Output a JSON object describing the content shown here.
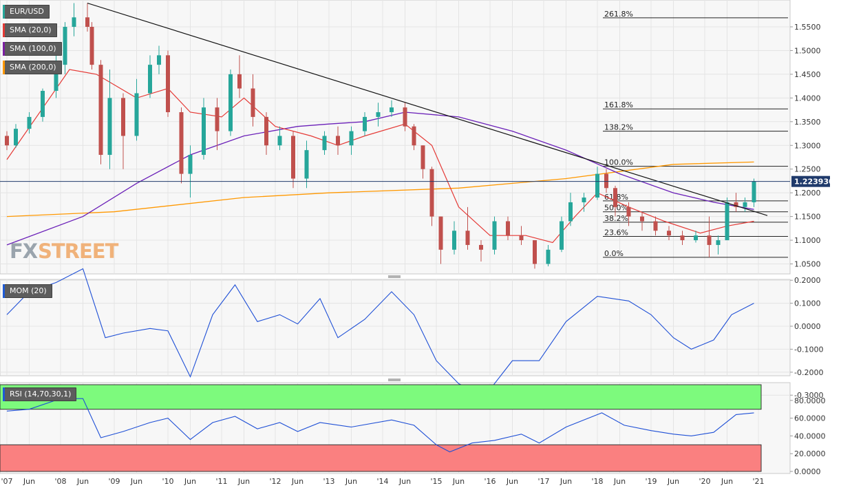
{
  "chart_data": {
    "type": "candlestick",
    "symbol": "EUR/USD",
    "last_price": "1.223930",
    "time_axis": {
      "labels": [
        "'07",
        "Jun",
        "'08",
        "Jun",
        "'09",
        "Jun",
        "'10",
        "Jun",
        "'11",
        "Jun",
        "'12",
        "Jun",
        "'13",
        "Jun",
        "'14",
        "Jun",
        "'15",
        "Jun",
        "'16",
        "Jun",
        "'17",
        "Jun",
        "'18",
        "Jun",
        "'19",
        "Jun",
        "'20",
        "Jun",
        "'21"
      ]
    },
    "price_axis": {
      "ylim": [
        1.03,
        1.6
      ],
      "ticks": [
        "1.5500",
        "1.5000",
        "1.4500",
        "1.4000",
        "1.3500",
        "1.3000",
        "1.2500",
        "1.2000",
        "1.1500",
        "1.1000",
        "1.0500"
      ]
    },
    "legend": [
      {
        "label": "EUR/USD",
        "color": "#26a69a"
      },
      {
        "label": "SMA (20,0)",
        "color": "#e53935"
      },
      {
        "label": "SMA (100,0)",
        "color": "#7b1fa2"
      },
      {
        "label": "SMA (200,0)",
        "color": "#ff9800"
      }
    ],
    "fibonacci": [
      {
        "label": "261.8%",
        "value": 1.569
      },
      {
        "label": "161.8%",
        "value": 1.377
      },
      {
        "label": "138.2%",
        "value": 1.33
      },
      {
        "label": "100.0%",
        "value": 1.256
      },
      {
        "label": "61.8%",
        "value": 1.183
      },
      {
        "label": "50.0%",
        "value": 1.16
      },
      {
        "label": "38.2%",
        "value": 1.138
      },
      {
        "label": "23.6%",
        "value": 1.108
      },
      {
        "label": "0.0%",
        "value": 1.064
      }
    ],
    "candles": {
      "colors": {
        "up": "#26a69a",
        "down": "#c0504d"
      },
      "ohlc": [
        [
          "2007-01",
          1.32,
          1.33,
          1.29,
          1.3
        ],
        [
          "2007-03",
          1.3,
          1.345,
          1.295,
          1.335
        ],
        [
          "2007-06",
          1.335,
          1.37,
          1.325,
          1.36
        ],
        [
          "2007-09",
          1.36,
          1.42,
          1.35,
          1.415
        ],
        [
          "2007-12",
          1.415,
          1.49,
          1.4,
          1.47
        ],
        [
          "2008-02",
          1.47,
          1.56,
          1.45,
          1.55
        ],
        [
          "2008-04",
          1.55,
          1.6,
          1.53,
          1.57
        ],
        [
          "2008-07",
          1.57,
          1.6,
          1.54,
          1.55
        ],
        [
          "2008-08",
          1.55,
          1.56,
          1.46,
          1.47
        ],
        [
          "2008-10",
          1.47,
          1.48,
          1.26,
          1.28
        ],
        [
          "2008-12",
          1.28,
          1.46,
          1.25,
          1.4
        ],
        [
          "2009-03",
          1.4,
          1.41,
          1.25,
          1.32
        ],
        [
          "2009-06",
          1.32,
          1.44,
          1.31,
          1.41
        ],
        [
          "2009-09",
          1.41,
          1.49,
          1.4,
          1.47
        ],
        [
          "2009-11",
          1.47,
          1.51,
          1.45,
          1.49
        ],
        [
          "2010-01",
          1.49,
          1.5,
          1.36,
          1.37
        ],
        [
          "2010-04",
          1.37,
          1.38,
          1.22,
          1.24
        ],
        [
          "2010-06",
          1.24,
          1.3,
          1.19,
          1.28
        ],
        [
          "2010-09",
          1.28,
          1.4,
          1.27,
          1.38
        ],
        [
          "2010-12",
          1.38,
          1.4,
          1.29,
          1.33
        ],
        [
          "2011-03",
          1.33,
          1.46,
          1.32,
          1.45
        ],
        [
          "2011-05",
          1.45,
          1.49,
          1.4,
          1.42
        ],
        [
          "2011-08",
          1.42,
          1.45,
          1.34,
          1.36
        ],
        [
          "2011-11",
          1.36,
          1.37,
          1.28,
          1.3
        ],
        [
          "2012-02",
          1.3,
          1.34,
          1.29,
          1.32
        ],
        [
          "2012-05",
          1.32,
          1.33,
          1.21,
          1.23
        ],
        [
          "2012-08",
          1.23,
          1.31,
          1.21,
          1.29
        ],
        [
          "2012-12",
          1.29,
          1.33,
          1.28,
          1.32
        ],
        [
          "2013-03",
          1.32,
          1.34,
          1.28,
          1.3
        ],
        [
          "2013-06",
          1.3,
          1.34,
          1.28,
          1.33
        ],
        [
          "2013-09",
          1.33,
          1.37,
          1.32,
          1.36
        ],
        [
          "2013-12",
          1.36,
          1.39,
          1.34,
          1.37
        ],
        [
          "2014-03",
          1.37,
          1.395,
          1.36,
          1.38
        ],
        [
          "2014-06",
          1.38,
          1.39,
          1.33,
          1.34
        ],
        [
          "2014-08",
          1.34,
          1.345,
          1.29,
          1.3
        ],
        [
          "2014-10",
          1.3,
          1.3,
          1.23,
          1.25
        ],
        [
          "2014-12",
          1.25,
          1.255,
          1.13,
          1.15
        ],
        [
          "2015-02",
          1.15,
          1.15,
          1.05,
          1.08
        ],
        [
          "2015-05",
          1.08,
          1.14,
          1.07,
          1.12
        ],
        [
          "2015-08",
          1.12,
          1.17,
          1.08,
          1.09
        ],
        [
          "2015-11",
          1.09,
          1.1,
          1.055,
          1.08
        ],
        [
          "2016-02",
          1.08,
          1.15,
          1.07,
          1.14
        ],
        [
          "2016-05",
          1.14,
          1.15,
          1.1,
          1.11
        ],
        [
          "2016-08",
          1.11,
          1.13,
          1.09,
          1.1
        ],
        [
          "2016-11",
          1.1,
          1.1,
          1.04,
          1.05
        ],
        [
          "2017-02",
          1.05,
          1.09,
          1.045,
          1.08
        ],
        [
          "2017-05",
          1.08,
          1.15,
          1.075,
          1.14
        ],
        [
          "2017-07",
          1.14,
          1.2,
          1.13,
          1.18
        ],
        [
          "2017-10",
          1.18,
          1.2,
          1.16,
          1.19
        ],
        [
          "2018-01",
          1.19,
          1.255,
          1.185,
          1.24
        ],
        [
          "2018-03",
          1.24,
          1.25,
          1.2,
          1.21
        ],
        [
          "2018-05",
          1.21,
          1.215,
          1.15,
          1.17
        ],
        [
          "2018-08",
          1.17,
          1.18,
          1.13,
          1.15
        ],
        [
          "2018-11",
          1.15,
          1.16,
          1.12,
          1.14
        ],
        [
          "2019-02",
          1.14,
          1.15,
          1.11,
          1.12
        ],
        [
          "2019-05",
          1.12,
          1.13,
          1.1,
          1.11
        ],
        [
          "2019-08",
          1.11,
          1.12,
          1.09,
          1.1
        ],
        [
          "2019-11",
          1.1,
          1.12,
          1.095,
          1.11
        ],
        [
          "2020-02",
          1.11,
          1.15,
          1.064,
          1.09
        ],
        [
          "2020-04",
          1.09,
          1.11,
          1.07,
          1.1
        ],
        [
          "2020-06",
          1.1,
          1.19,
          1.1,
          1.18
        ],
        [
          "2020-08",
          1.18,
          1.2,
          1.16,
          1.17
        ],
        [
          "2020-10",
          1.17,
          1.19,
          1.16,
          1.18
        ],
        [
          "2020-12",
          1.18,
          1.23,
          1.17,
          1.224
        ]
      ]
    },
    "sma20": [
      [
        "2007-01",
        1.27
      ],
      [
        "2008-03",
        1.46
      ],
      [
        "2008-09",
        1.45
      ],
      [
        "2009-06",
        1.4
      ],
      [
        "2010-01",
        1.42
      ],
      [
        "2010-06",
        1.37
      ],
      [
        "2011-01",
        1.36
      ],
      [
        "2011-06",
        1.4
      ],
      [
        "2012-01",
        1.34
      ],
      [
        "2012-09",
        1.32
      ],
      [
        "2013-03",
        1.3
      ],
      [
        "2013-09",
        1.32
      ],
      [
        "2014-06",
        1.345
      ],
      [
        "2014-12",
        1.3
      ],
      [
        "2015-06",
        1.17
      ],
      [
        "2016-01",
        1.11
      ],
      [
        "2016-09",
        1.11
      ],
      [
        "2017-03",
        1.095
      ],
      [
        "2017-08",
        1.15
      ],
      [
        "2018-01",
        1.2
      ],
      [
        "2018-08",
        1.17
      ],
      [
        "2019-04",
        1.14
      ],
      [
        "2019-12",
        1.115
      ],
      [
        "2020-06",
        1.13
      ],
      [
        "2020-12",
        1.14
      ]
    ],
    "sma100": [
      [
        "2007-01",
        1.09
      ],
      [
        "2008-06",
        1.15
      ],
      [
        "2009-06",
        1.22
      ],
      [
        "2010-06",
        1.28
      ],
      [
        "2011-06",
        1.32
      ],
      [
        "2012-06",
        1.34
      ],
      [
        "2013-01",
        1.345
      ],
      [
        "2013-09",
        1.35
      ],
      [
        "2014-06",
        1.37
      ],
      [
        "2015-06",
        1.36
      ],
      [
        "2016-06",
        1.33
      ],
      [
        "2017-06",
        1.29
      ],
      [
        "2018-06",
        1.24
      ],
      [
        "2019-06",
        1.2
      ],
      [
        "2020-03",
        1.18
      ],
      [
        "2020-12",
        1.165
      ]
    ],
    "sma200": [
      [
        "2007-01",
        1.15
      ],
      [
        "2009-01",
        1.16
      ],
      [
        "2011-06",
        1.19
      ],
      [
        "2013-01",
        1.2
      ],
      [
        "2015-06",
        1.21
      ],
      [
        "2017-06",
        1.23
      ],
      [
        "2019-06",
        1.26
      ],
      [
        "2020-12",
        1.265
      ]
    ],
    "trendline": [
      [
        "2008-07",
        1.6
      ],
      [
        "2021-03",
        1.152
      ]
    ],
    "momentum": {
      "label": "MOM (20)",
      "ticks": [
        "0.2000",
        "0.1000",
        "0.0000",
        "-0.1000",
        "-0.2000",
        "-0.3000"
      ],
      "ylim": [
        -0.32,
        0.25
      ],
      "values": [
        [
          "2007-01",
          0.05
        ],
        [
          "2007-06",
          0.15
        ],
        [
          "2007-12",
          0.19
        ],
        [
          "2008-06",
          0.25
        ],
        [
          "2008-11",
          -0.05
        ],
        [
          "2009-03",
          -0.03
        ],
        [
          "2009-09",
          -0.01
        ],
        [
          "2010-01",
          -0.02
        ],
        [
          "2010-06",
          -0.22
        ],
        [
          "2010-11",
          0.05
        ],
        [
          "2011-04",
          0.18
        ],
        [
          "2011-09",
          0.02
        ],
        [
          "2012-02",
          0.05
        ],
        [
          "2012-06",
          0.01
        ],
        [
          "2012-11",
          0.12
        ],
        [
          "2013-03",
          -0.05
        ],
        [
          "2013-09",
          0.03
        ],
        [
          "2014-03",
          0.15
        ],
        [
          "2014-08",
          0.05
        ],
        [
          "2015-01",
          -0.15
        ],
        [
          "2015-06",
          -0.25
        ],
        [
          "2015-12",
          -0.3
        ],
        [
          "2016-06",
          -0.15
        ],
        [
          "2016-12",
          -0.15
        ],
        [
          "2017-06",
          0.02
        ],
        [
          "2018-01",
          0.13
        ],
        [
          "2018-08",
          0.11
        ],
        [
          "2019-01",
          0.05
        ],
        [
          "2019-06",
          -0.05
        ],
        [
          "2019-10",
          -0.1
        ],
        [
          "2020-03",
          -0.06
        ],
        [
          "2020-07",
          0.05
        ],
        [
          "2020-12",
          0.1
        ]
      ]
    },
    "rsi": {
      "label": "RSI (14,70,30,1)",
      "ticks": [
        "80.0000",
        "60.0000",
        "40.0000",
        "20.0000",
        "0.0000"
      ],
      "ylim": [
        0,
        100
      ],
      "overbought": 70,
      "oversold": 30,
      "values": [
        [
          "2007-01",
          68
        ],
        [
          "2007-06",
          70
        ],
        [
          "2008-01",
          82
        ],
        [
          "2008-06",
          82
        ],
        [
          "2008-10",
          38
        ],
        [
          "2009-03",
          45
        ],
        [
          "2009-09",
          55
        ],
        [
          "2010-01",
          60
        ],
        [
          "2010-06",
          36
        ],
        [
          "2010-11",
          55
        ],
        [
          "2011-04",
          62
        ],
        [
          "2011-09",
          48
        ],
        [
          "2012-02",
          55
        ],
        [
          "2012-06",
          45
        ],
        [
          "2012-11",
          55
        ],
        [
          "2013-06",
          50
        ],
        [
          "2014-03",
          58
        ],
        [
          "2014-08",
          52
        ],
        [
          "2015-01",
          30
        ],
        [
          "2015-04",
          22
        ],
        [
          "2015-09",
          32
        ],
        [
          "2016-02",
          35
        ],
        [
          "2016-08",
          42
        ],
        [
          "2016-12",
          32
        ],
        [
          "2017-06",
          50
        ],
        [
          "2018-02",
          66
        ],
        [
          "2018-07",
          52
        ],
        [
          "2019-01",
          46
        ],
        [
          "2019-06",
          42
        ],
        [
          "2019-10",
          40
        ],
        [
          "2020-03",
          44
        ],
        [
          "2020-08",
          64
        ],
        [
          "2020-12",
          66
        ]
      ]
    }
  }
}
